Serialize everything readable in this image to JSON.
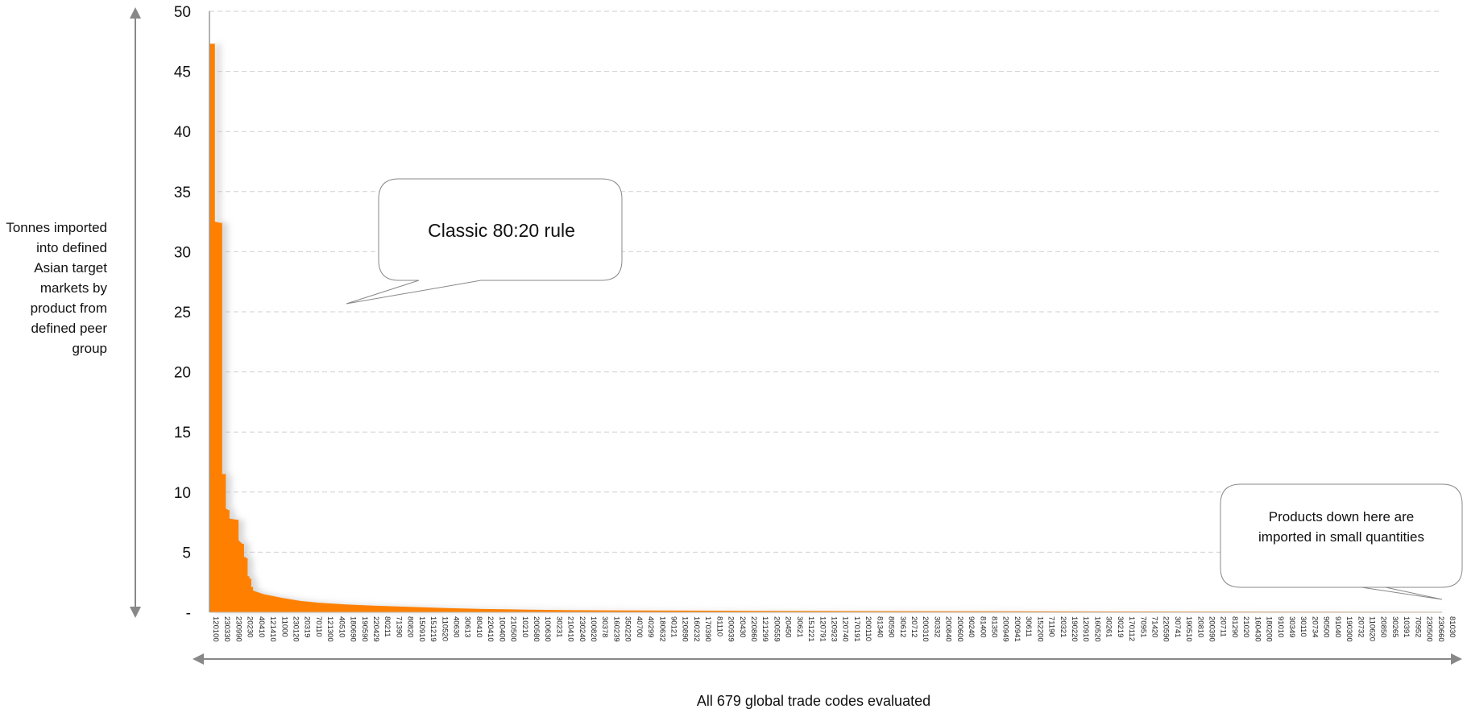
{
  "chart_data": {
    "type": "area",
    "ylabel": "Tonnes imported into defined Asian target markets by product from defined peer group",
    "xlabel": "All 679 global trade codes evaluated",
    "ylim": [
      0,
      50
    ],
    "yticks": [
      {
        "value": 0,
        "label": "-"
      },
      {
        "value": 5,
        "label": "5"
      },
      {
        "value": 10,
        "label": "10"
      },
      {
        "value": 15,
        "label": "15"
      },
      {
        "value": 20,
        "label": "20"
      },
      {
        "value": 25,
        "label": "25"
      },
      {
        "value": 30,
        "label": "30"
      },
      {
        "value": 35,
        "label": "35"
      },
      {
        "value": 40,
        "label": "40"
      },
      {
        "value": 45,
        "label": "45"
      },
      {
        "value": 50,
        "label": "50"
      }
    ],
    "grid": true,
    "n_categories": 679,
    "series": [
      {
        "color": "#ff8000",
        "points": [
          [
            0,
            47.3
          ],
          [
            2,
            47.3
          ],
          [
            3,
            32.5
          ],
          [
            6,
            32.4
          ],
          [
            7,
            11.5
          ],
          [
            8,
            11.5
          ],
          [
            9,
            8.6
          ],
          [
            10,
            8.5
          ],
          [
            11,
            7.8
          ],
          [
            15,
            7.7
          ],
          [
            16,
            6.0
          ],
          [
            18,
            5.7
          ],
          [
            19,
            4.6
          ],
          [
            20,
            4.5
          ],
          [
            21,
            3.0
          ],
          [
            22,
            2.8
          ],
          [
            23,
            2.1
          ],
          [
            24,
            1.8
          ],
          [
            30,
            1.5
          ],
          [
            40,
            1.2
          ],
          [
            50,
            0.95
          ],
          [
            60,
            0.8
          ],
          [
            75,
            0.65
          ],
          [
            90,
            0.55
          ],
          [
            110,
            0.45
          ],
          [
            130,
            0.35
          ],
          [
            150,
            0.28
          ],
          [
            175,
            0.22
          ],
          [
            200,
            0.18
          ],
          [
            240,
            0.15
          ],
          [
            300,
            0.12
          ],
          [
            400,
            0.09
          ],
          [
            500,
            0.07
          ],
          [
            600,
            0.05
          ],
          [
            678,
            0.04
          ]
        ]
      }
    ],
    "xtick_labels": [
      "120100",
      "230330",
      "230990",
      "20230",
      "40410",
      "121410",
      "11000",
      "230120",
      "20319",
      "70110",
      "121300",
      "40510",
      "180690",
      "190590",
      "220429",
      "80211",
      "71390",
      "80820",
      "150910",
      "151219",
      "110520",
      "40630",
      "30613",
      "80410",
      "220410",
      "100400",
      "210500",
      "10210",
      "200580",
      "100630",
      "30231",
      "210410",
      "230240",
      "100820",
      "30378",
      "160239",
      "350220",
      "40700",
      "40299",
      "180632",
      "90121",
      "120890",
      "160232",
      "170390",
      "81110",
      "200939",
      "20430",
      "220860",
      "121299",
      "200559",
      "20450",
      "30621",
      "151221",
      "120791",
      "120923",
      "120740",
      "170191",
      "200110",
      "81340",
      "80590",
      "30612",
      "20712",
      "200310",
      "30332",
      "200840",
      "200600",
      "90240",
      "81400",
      "81350",
      "200949",
      "200941",
      "30611",
      "152200",
      "71190",
      "20321",
      "190220",
      "120910",
      "160520",
      "30261",
      "30219",
      "170112",
      "70951",
      "71420",
      "220590",
      "30741",
      "190510",
      "20810",
      "200390",
      "20711",
      "81290",
      "21020",
      "160430",
      "180200",
      "91010",
      "30349",
      "30110",
      "20734",
      "90500",
      "91040",
      "190300",
      "20732",
      "110620",
      "20850",
      "30265",
      "10391",
      "70952",
      "230500",
      "230660",
      "81030"
    ],
    "callouts": [
      {
        "text": "Classic 80:20 rule"
      },
      {
        "text_lines": [
          "Products down here are",
          "imported in small quantities"
        ]
      }
    ]
  }
}
